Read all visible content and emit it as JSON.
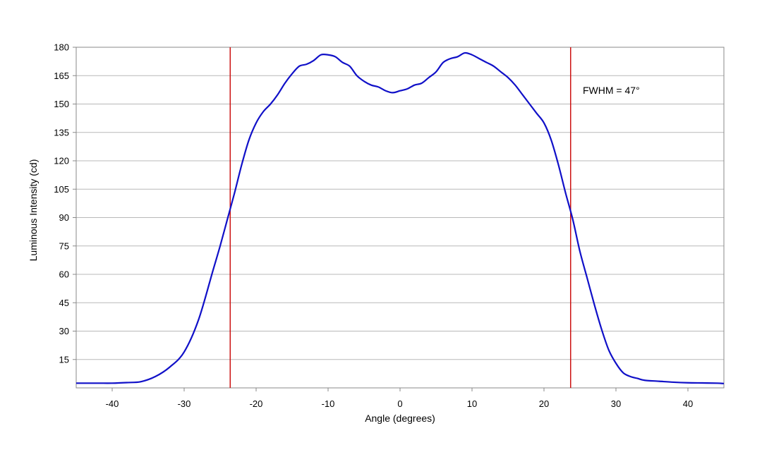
{
  "chart_data": {
    "type": "line",
    "title": "",
    "xlabel": "Angle (degrees)",
    "ylabel": "Luminous Intensity (cd)",
    "xlim": [
      -45,
      45
    ],
    "ylim": [
      0,
      180
    ],
    "x_ticks": [
      -40,
      -30,
      -20,
      -10,
      0,
      10,
      20,
      30,
      40
    ],
    "y_ticks": [
      15,
      30,
      45,
      60,
      75,
      90,
      105,
      120,
      135,
      150,
      165,
      180
    ],
    "grid": true,
    "annotation": "FWHM = 47°",
    "colors": {
      "series": "#1010c8",
      "markers": "#cc1111",
      "grid": "#b8b8b8"
    },
    "vertical_lines": [
      -23.6,
      23.7
    ],
    "series": [
      {
        "x": [
          -45,
          -42,
          -40,
          -38,
          -36,
          -34,
          -32,
          -30,
          -28,
          -26,
          -25,
          -24,
          -23,
          -22,
          -21,
          -20,
          -19,
          -18,
          -17,
          -16,
          -15,
          -14,
          -13,
          -12,
          -11,
          -10,
          -9,
          -8,
          -7,
          -6,
          -5,
          -4,
          -3,
          -2,
          -1,
          0,
          1,
          2,
          3,
          4,
          5,
          6,
          7,
          8,
          9,
          10,
          11,
          12,
          13,
          14,
          15,
          16,
          17,
          18,
          19,
          20,
          21,
          22,
          23,
          24,
          25,
          26,
          27,
          28,
          29,
          30,
          31,
          32,
          33,
          34,
          36,
          38,
          40,
          42,
          44,
          45
        ],
        "y": [
          2.5,
          2.5,
          2.5,
          2.8,
          3.3,
          6,
          11,
          19,
          36,
          62,
          75,
          89,
          103,
          118,
          131,
          140,
          146,
          150,
          155,
          161,
          166,
          170,
          171,
          173,
          176,
          176,
          175,
          172,
          170,
          165,
          162,
          160,
          159,
          157,
          156,
          157,
          158,
          160,
          161,
          164,
          167,
          172,
          174,
          175,
          177,
          176,
          174,
          172,
          170,
          167,
          164,
          160,
          155,
          150,
          145,
          140,
          131,
          118,
          103,
          89,
          72,
          58,
          44,
          31,
          20,
          13,
          8,
          6,
          5,
          4,
          3.5,
          3,
          2.7,
          2.6,
          2.5,
          2.3
        ]
      }
    ]
  }
}
